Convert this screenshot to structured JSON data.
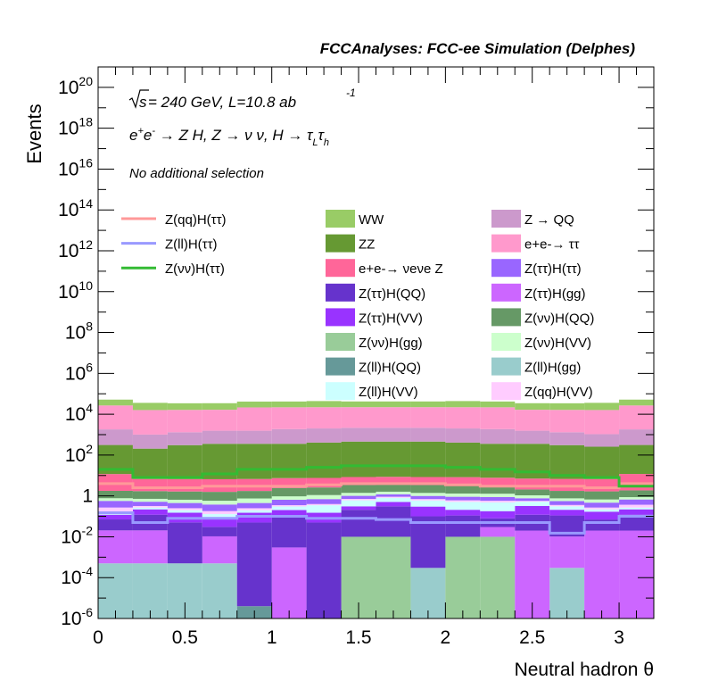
{
  "header": {
    "title": "FCCAnalyses: FCC-ee Simulation (Delphes)",
    "energy_sqrt": "s",
    "energy_rest": " = 240 GeV, L=10.8 ab",
    "energy_exp": "-1",
    "process": "e+e- → Z H, Z → νν, H → τLτh",
    "selection": "No additional selection"
  },
  "chart_data": {
    "type": "area",
    "stacked": true,
    "xlabel": "Neutral hadron θ",
    "ylabel": "Events",
    "xlim": [
      0,
      3.2
    ],
    "ylim": [
      1e-06,
      1e+21
    ],
    "yscale": "log",
    "x_bin_edges": [
      0,
      0.2,
      0.4,
      0.6,
      0.8,
      1.0,
      1.2,
      1.4,
      1.6,
      1.8,
      2.0,
      2.2,
      2.4,
      2.6,
      2.8,
      3.0,
      3.2
    ],
    "xticks": [
      "0",
      "0.5",
      "1",
      "1.5",
      "2",
      "2.5",
      "3"
    ],
    "xtick_values": [
      0,
      0.5,
      1,
      1.5,
      2,
      2.5,
      3
    ],
    "yticks": [
      "10-6",
      "10-4",
      "10-2",
      "1",
      "102",
      "104",
      "106",
      "108",
      "1010",
      "1012",
      "1014",
      "1016",
      "1018",
      "1020"
    ],
    "ytick_exps": [
      -6,
      -4,
      -2,
      0,
      2,
      4,
      6,
      8,
      10,
      12,
      14,
      16,
      18,
      20
    ],
    "stacked_series_order_bottom_to_top": [
      "Z(ll)H(gg)",
      "Z(νν)H(gg)",
      "Z(ll)H(QQ)",
      "Z(ττ)H(gg)",
      "Z(ττ)H(QQ)",
      "Z(ττ)H(VV)",
      "Z(ll)H(VV)",
      "Z(qq)H(VV)",
      "Z(ττ)H(ττ)",
      "Z(νν)H(VV)",
      "Z(νν)H(QQ)",
      "e+e- → νeνe Z",
      "ZZ",
      "Z → QQ",
      "e+e- → ττ",
      "WW"
    ],
    "stacked_series": [
      {
        "name": "Z(ll)H(gg)",
        "color": "#99cccc",
        "values": [
          0.0005,
          0.0005,
          0.0005,
          0.0005,
          0,
          0,
          0,
          0,
          0,
          0.0003,
          0,
          0,
          0,
          0.0003,
          0,
          0
        ]
      },
      {
        "name": "Z(νν)H(gg)",
        "color": "#99cc99",
        "values": [
          0,
          0,
          0,
          0,
          0,
          0,
          0,
          0.01,
          0.01,
          0,
          0.01,
          0.01,
          0,
          0,
          0,
          0
        ]
      },
      {
        "name": "Z(ll)H(QQ)",
        "color": "#669999",
        "values": [
          0,
          0,
          0,
          0,
          4e-06,
          0,
          0,
          0,
          0,
          0,
          0,
          0,
          0,
          0,
          0,
          0
        ]
      },
      {
        "name": "Z(ττ)H(gg)",
        "color": "#cc66ff",
        "values": [
          0.02,
          0.02,
          0,
          0.01,
          0,
          0.003,
          0,
          0,
          0,
          0,
          0,
          0.02,
          0.02,
          0.01,
          0.02,
          0.02
        ]
      },
      {
        "name": "Z(ττ)H(QQ)",
        "color": "#6633cc",
        "values": [
          0.05,
          0.1,
          0.05,
          0.02,
          0.05,
          0.1,
          0.05,
          0.2,
          0.3,
          0.1,
          0.1,
          0.05,
          0.1,
          0.1,
          0.05,
          0.1
        ]
      },
      {
        "name": "Z(ττ)H(VV)",
        "color": "#9933ff",
        "values": [
          0.05,
          0.1,
          0.1,
          0.05,
          0.1,
          0.1,
          0.1,
          0.1,
          0.2,
          0.2,
          0.1,
          0.1,
          0.2,
          0.1,
          0.1,
          0.1
        ]
      },
      {
        "name": "Z(ll)H(VV)",
        "color": "#ccffff",
        "values": [
          0.05,
          0.05,
          0.05,
          0.05,
          0.05,
          0.1,
          0.2,
          0.3,
          0.3,
          0.3,
          0.3,
          0.3,
          0.2,
          0.1,
          0.05,
          0.05
        ]
      },
      {
        "name": "Z(qq)H(VV)",
        "color": "#ffccff",
        "values": [
          0.1,
          0.05,
          0.05,
          0.05,
          0.05,
          0.05,
          0.05,
          0.1,
          0.1,
          0.1,
          0.1,
          0.1,
          0.05,
          0.05,
          0.05,
          0.1
        ]
      },
      {
        "name": "Z(ττ)H(ττ)",
        "color": "#9966ff",
        "values": [
          0.3,
          0.2,
          0.2,
          0.2,
          0.2,
          0.3,
          0.3,
          0.3,
          0.3,
          0.3,
          0.3,
          0.3,
          0.2,
          0.2,
          0.2,
          0.3
        ]
      },
      {
        "name": "Z(νν)H(VV)",
        "color": "#ccffcc",
        "values": [
          0.2,
          0.2,
          0.2,
          0.2,
          0.3,
          0.3,
          0.4,
          0.4,
          0.4,
          0.4,
          0.4,
          0.4,
          0.3,
          0.2,
          0.2,
          0.2
        ]
      },
      {
        "name": "Z(νν)H(QQ)",
        "color": "#669966",
        "values": [
          1,
          1,
          1,
          1,
          1,
          1.5,
          1.5,
          2,
          2,
          2,
          2,
          1.5,
          1,
          1,
          1,
          1
        ]
      },
      {
        "name": "e+e- → νeνe Z",
        "color": "#ff6699",
        "values": [
          10,
          5,
          5,
          5,
          5,
          5,
          5,
          5,
          5,
          5,
          5,
          5,
          5,
          5,
          5,
          10
        ]
      },
      {
        "name": "ZZ",
        "color": "#669933",
        "values": [
          300,
          200,
          300,
          350,
          350,
          350,
          400,
          450,
          450,
          450,
          400,
          350,
          350,
          300,
          250,
          300
        ]
      },
      {
        "name": "Z → QQ",
        "color": "#cc99cc",
        "values": [
          1500,
          800,
          1000,
          1200,
          1200,
          1500,
          1600,
          1700,
          1700,
          1700,
          1600,
          1500,
          1200,
          1000,
          800,
          1500
        ]
      },
      {
        "name": "e+e- → ττ",
        "color": "#ff99cc",
        "values": [
          25000,
          15000,
          15000,
          15000,
          20000,
          20000,
          20000,
          20000,
          20000,
          20000,
          20000,
          20000,
          15000,
          15000,
          15000,
          25000
        ]
      },
      {
        "name": "WW",
        "color": "#99cc66",
        "values": [
          25000,
          20000,
          18000,
          18000,
          20000,
          20000,
          22000,
          20000,
          20000,
          20000,
          22000,
          20000,
          18000,
          18000,
          20000,
          25000
        ]
      }
    ],
    "line_series": [
      {
        "name": "Z(qq)H(ττ)",
        "color": "#ff9999",
        "values": [
          4,
          2.5,
          2.5,
          3,
          3,
          3,
          3.5,
          4,
          4,
          4,
          3.5,
          3,
          3,
          3,
          2.5,
          4
        ]
      },
      {
        "name": "Z(ll)H(ττ)",
        "color": "#9999ff",
        "values": [
          0.15,
          0.05,
          0.08,
          0.08,
          0.1,
          0.1,
          0.08,
          0.08,
          0.07,
          0.05,
          0.05,
          0.05,
          0.05,
          0.015,
          0.05,
          0.1
        ]
      },
      {
        "name": "Z(νν)H(ττ)",
        "color": "#33bb33",
        "values": [
          20,
          8,
          8,
          12,
          20,
          20,
          25,
          30,
          30,
          30,
          25,
          20,
          15,
          10,
          8,
          3
        ]
      }
    ],
    "legend_lines": [
      "Z(qq)H(ττ)",
      "Z(ll)H(ττ)",
      "Z(νν)H(ττ)"
    ],
    "legend_col1": [
      {
        "label": "WW",
        "color": "#99cc66"
      },
      {
        "label": "ZZ",
        "color": "#669933"
      },
      {
        "label": "e+e-→ νeνe Z",
        "color": "#ff6699"
      },
      {
        "label": "Z(ττ)H(QQ)",
        "color": "#6633cc"
      },
      {
        "label": "Z(ττ)H(VV)",
        "color": "#9933ff"
      },
      {
        "label": "Z(νν)H(gg)",
        "color": "#99cc99"
      },
      {
        "label": "Z(ll)H(QQ)",
        "color": "#669999"
      },
      {
        "label": "Z(ll)H(VV)",
        "color": "#ccffff"
      }
    ],
    "legend_col2": [
      {
        "label": "Z → QQ",
        "color": "#cc99cc"
      },
      {
        "label": "e+e-→ ττ",
        "color": "#ff99cc"
      },
      {
        "label": "Z(ττ)H(ττ)",
        "color": "#9966ff"
      },
      {
        "label": "Z(ττ)H(gg)",
        "color": "#cc66ff"
      },
      {
        "label": "Z(νν)H(QQ)",
        "color": "#669966"
      },
      {
        "label": "Z(νν)H(VV)",
        "color": "#ccffcc"
      },
      {
        "label": "Z(ll)H(gg)",
        "color": "#99cccc"
      },
      {
        "label": "Z(qq)H(VV)",
        "color": "#ffccff"
      }
    ]
  }
}
